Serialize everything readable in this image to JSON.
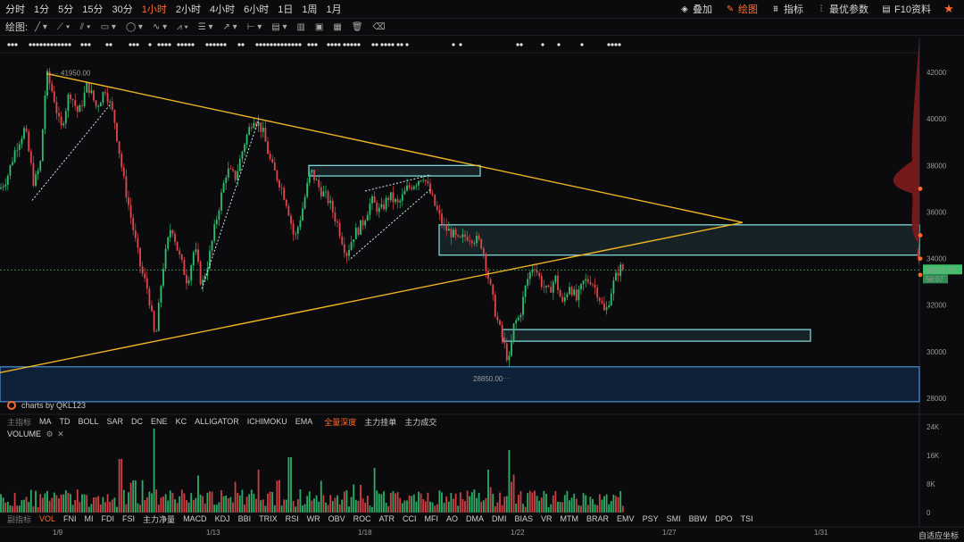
{
  "timeframes": [
    "分时",
    "1分",
    "5分",
    "15分",
    "30分",
    "1小时",
    "2小时",
    "4小时",
    "6小时",
    "1日",
    "1周",
    "1月"
  ],
  "active_timeframe": "1小时",
  "right_tools": [
    {
      "icon": "layers-icon",
      "label": "叠加"
    },
    {
      "icon": "pen-icon",
      "label": "绘图",
      "active": true
    },
    {
      "icon": "indicator-icon",
      "label": "指标"
    },
    {
      "icon": "params-icon",
      "label": "最优参数"
    },
    {
      "icon": "doc-icon",
      "label": "F10资料"
    },
    {
      "icon": "star-icon",
      "label": ""
    }
  ],
  "draw_label": "绘图:",
  "main_indicators": {
    "label": "主指标",
    "items": [
      "MA",
      "TD",
      "BOLL",
      "SAR",
      "DC",
      "ENE",
      "KC",
      "ALLIGATOR",
      "ICHIMOKU",
      "EMA"
    ],
    "active_items": [
      "全量深度"
    ],
    "extra_items": [
      "主力挂单",
      "主力成交"
    ]
  },
  "sub_indicators": {
    "label": "副指标",
    "active": "VOL",
    "items": [
      "FNI",
      "MI",
      "FDI",
      "FSI",
      "主力净量",
      "MACD",
      "KDJ",
      "BBI",
      "TRIX",
      "RSI",
      "WR",
      "OBV",
      "ROC",
      "ATR",
      "CCI",
      "MFI",
      "AO",
      "DMA",
      "DMI",
      "BIAS",
      "VR",
      "MTM",
      "BRAR",
      "EMV",
      "PSY",
      "SMI",
      "BBW",
      "DPO",
      "TSI"
    ]
  },
  "volume_title": "VOLUME",
  "brand": "charts by QKL123",
  "autofit_label": "自适应坐标",
  "current_price": "33512.79",
  "countdown": "58:07",
  "high_label": "41950.00",
  "low_label": "28850.00",
  "colors": {
    "up": "#2fbf71",
    "down": "#e0474c",
    "accent": "#ff6a2b",
    "trendline": "#f0b323",
    "zone": "#7fd6d8",
    "price_tag": "#3fbf6a"
  },
  "chart_data": {
    "type": "candlestick",
    "ylim": [
      27500,
      43500
    ],
    "yticks": [
      42000,
      40000,
      38000,
      36000,
      34000,
      32000,
      30000,
      28000
    ],
    "x_tick_labels": [
      "1/9",
      "1/13",
      "1/18",
      "1/22",
      "1/27",
      "1/31"
    ],
    "volume_ticks": [
      "24K",
      "16K",
      "8K",
      "0"
    ],
    "close_path_anchors": [
      [
        0,
        37000
      ],
      [
        8,
        37500
      ],
      [
        18,
        38800
      ],
      [
        28,
        39600
      ],
      [
        38,
        37200
      ],
      [
        45,
        38000
      ],
      [
        52,
        41950
      ],
      [
        60,
        41000
      ],
      [
        68,
        39500
      ],
      [
        78,
        41200
      ],
      [
        88,
        40200
      ],
      [
        98,
        41500
      ],
      [
        108,
        40500
      ],
      [
        118,
        41300
      ],
      [
        128,
        40000
      ],
      [
        138,
        37500
      ],
      [
        148,
        35500
      ],
      [
        158,
        33500
      ],
      [
        166,
        32600
      ],
      [
        174,
        30400
      ],
      [
        182,
        33500
      ],
      [
        192,
        35500
      ],
      [
        200,
        34200
      ],
      [
        210,
        33000
      ],
      [
        218,
        34500
      ],
      [
        226,
        32800
      ],
      [
        234,
        34000
      ],
      [
        244,
        36000
      ],
      [
        254,
        37800
      ],
      [
        264,
        37500
      ],
      [
        274,
        39000
      ],
      [
        284,
        40100
      ],
      [
        294,
        39500
      ],
      [
        304,
        38000
      ],
      [
        314,
        37200
      ],
      [
        322,
        36300
      ],
      [
        330,
        34800
      ],
      [
        338,
        36000
      ],
      [
        348,
        37800
      ],
      [
        358,
        37000
      ],
      [
        368,
        36500
      ],
      [
        378,
        35500
      ],
      [
        388,
        34200
      ],
      [
        396,
        35000
      ],
      [
        406,
        35500
      ],
      [
        416,
        36500
      ],
      [
        426,
        36000
      ],
      [
        436,
        36700
      ],
      [
        446,
        36300
      ],
      [
        456,
        37000
      ],
      [
        466,
        37300
      ],
      [
        474,
        37600
      ],
      [
        482,
        36800
      ],
      [
        490,
        36000
      ],
      [
        498,
        35300
      ],
      [
        506,
        35100
      ],
      [
        514,
        34700
      ],
      [
        522,
        35000
      ],
      [
        530,
        34900
      ],
      [
        540,
        34600
      ],
      [
        548,
        33000
      ],
      [
        556,
        31500
      ],
      [
        564,
        30400
      ],
      [
        570,
        29500
      ],
      [
        576,
        31200
      ],
      [
        582,
        31500
      ],
      [
        590,
        33000
      ],
      [
        598,
        33800
      ],
      [
        606,
        33000
      ],
      [
        614,
        32500
      ],
      [
        622,
        33200
      ],
      [
        630,
        32000
      ],
      [
        638,
        32900
      ],
      [
        646,
        32200
      ],
      [
        654,
        33000
      ],
      [
        662,
        33100
      ],
      [
        670,
        32500
      ],
      [
        678,
        31600
      ],
      [
        686,
        32800
      ],
      [
        694,
        33600
      ],
      [
        700,
        33500
      ]
    ],
    "volume_levels": [
      {
        "x": 173,
        "v": 23500
      },
      {
        "x": 135,
        "v": 15000
      },
      {
        "x": 290,
        "v": 12000
      },
      {
        "x": 325,
        "v": 15500
      },
      {
        "x": 570,
        "v": 17500
      },
      {
        "x": 548,
        "v": 12000
      },
      {
        "x": 420,
        "v": 12500
      },
      {
        "x": 150,
        "v": 9000
      }
    ],
    "trendlines": [
      {
        "from": [
          52,
          41950
        ],
        "to": [
          832,
          35550
        ]
      },
      {
        "from": [
          0,
          29100
        ],
        "to": [
          832,
          35550
        ]
      }
    ],
    "zones": [
      {
        "x1": 346,
        "x2": 538,
        "y1": 37550,
        "y2": 38000
      },
      {
        "x1": 492,
        "x2": 1030,
        "y1": 34150,
        "y2": 35450
      },
      {
        "x1": 563,
        "x2": 908,
        "y1": 30450,
        "y2": 30950
      }
    ],
    "demand_zone": {
      "y1": 27850,
      "y2": 29350
    },
    "dotted_channels": [
      {
        "from": [
          36,
          36500
        ],
        "to": [
          123,
          40600
        ]
      },
      {
        "from": [
          226,
          32700
        ],
        "to": [
          290,
          40000
        ]
      },
      {
        "from": [
          393,
          34000
        ],
        "to": [
          483,
          37000
        ]
      },
      {
        "from": [
          409,
          36900
        ],
        "to": [
          483,
          37600
        ]
      }
    ],
    "current_price_value": 33512.79
  }
}
